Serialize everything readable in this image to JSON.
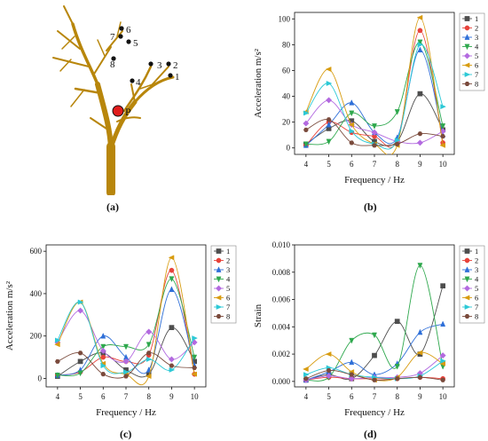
{
  "captions": {
    "a": "(a)",
    "b": "(b)",
    "c": "(c)",
    "d": "(d)"
  },
  "tree": {
    "point_label": "P",
    "point_color": "#e11d1d",
    "branch_color": "#b8860b",
    "labels": [
      "1",
      "2",
      "3",
      "4",
      "5",
      "6",
      "7",
      "8"
    ]
  },
  "colors": {
    "series": [
      "#4d4d4d",
      "#e8433b",
      "#2e6fd8",
      "#2ea84d",
      "#b36ae0",
      "#d89c10",
      "#2cc9d6",
      "#7a4a3c"
    ]
  },
  "chart_data": [
    {
      "id": "b",
      "type": "line",
      "xlabel": "Frequency / Hz",
      "ylabel": "Acceleration m/s²",
      "x": [
        4,
        5,
        6,
        7,
        8,
        9,
        10
      ],
      "xlim": [
        3.5,
        10.5
      ],
      "ylim": [
        -5,
        105
      ],
      "yticks": [
        0,
        20,
        40,
        60,
        80,
        100
      ],
      "yticklabels": [
        "0",
        "20",
        "40",
        "60",
        "80",
        "100"
      ],
      "legend": "right",
      "series": [
        {
          "name": "1",
          "marker": "square",
          "values": [
            3,
            15,
            21,
            5,
            5,
            42,
            14
          ]
        },
        {
          "name": "2",
          "marker": "circle",
          "values": [
            2,
            20,
            12,
            9,
            6,
            91,
            4
          ]
        },
        {
          "name": "3",
          "marker": "triangle-up",
          "values": [
            2,
            18,
            35,
            12,
            8,
            76,
            10
          ]
        },
        {
          "name": "4",
          "marker": "triangle-down",
          "values": [
            3,
            5,
            27,
            17,
            28,
            82,
            17
          ]
        },
        {
          "name": "5",
          "marker": "diamond",
          "values": [
            19,
            37,
            18,
            12,
            5,
            4,
            13
          ]
        },
        {
          "name": "6",
          "marker": "triangle-left",
          "values": [
            28,
            61,
            18,
            3,
            2,
            101,
            2
          ]
        },
        {
          "name": "7",
          "marker": "triangle-right",
          "values": [
            27,
            50,
            13,
            3,
            6,
            80,
            32
          ]
        },
        {
          "name": "8",
          "marker": "hexagon",
          "values": [
            14,
            22,
            4,
            2,
            3,
            11,
            9
          ]
        }
      ]
    },
    {
      "id": "c",
      "type": "line",
      "xlabel": "Frequency / Hz",
      "ylabel": "Acceleration m/s²",
      "x": [
        4,
        5,
        6,
        7,
        8,
        9,
        10
      ],
      "xlim": [
        3.5,
        10.5
      ],
      "ylim": [
        -40,
        630
      ],
      "yticks": [
        0,
        200,
        400,
        600
      ],
      "yticklabels": [
        "0",
        "200",
        "400",
        "600"
      ],
      "legend": "right",
      "series": [
        {
          "name": "1",
          "marker": "square",
          "values": [
            10,
            80,
            120,
            40,
            20,
            240,
            80
          ]
        },
        {
          "name": "2",
          "marker": "circle",
          "values": [
            15,
            30,
            100,
            80,
            110,
            510,
            20
          ]
        },
        {
          "name": "3",
          "marker": "triangle-up",
          "values": [
            15,
            40,
            200,
            100,
            40,
            420,
            60
          ]
        },
        {
          "name": "4",
          "marker": "triangle-down",
          "values": [
            15,
            25,
            150,
            150,
            160,
            470,
            100
          ]
        },
        {
          "name": "5",
          "marker": "diamond",
          "values": [
            170,
            320,
            130,
            80,
            220,
            90,
            170
          ]
        },
        {
          "name": "6",
          "marker": "triangle-left",
          "values": [
            160,
            360,
            70,
            20,
            10,
            570,
            20
          ]
        },
        {
          "name": "7",
          "marker": "triangle-right",
          "values": [
            180,
            360,
            60,
            30,
            90,
            40,
            190
          ]
        },
        {
          "name": "8",
          "marker": "hexagon",
          "values": [
            80,
            120,
            20,
            10,
            120,
            60,
            50
          ]
        }
      ]
    },
    {
      "id": "d",
      "type": "line",
      "xlabel": "Frequency / Hz",
      "ylabel": "Strain",
      "x": [
        4,
        5,
        6,
        7,
        8,
        9,
        10
      ],
      "xlim": [
        3.5,
        10.5
      ],
      "ylim": [
        -0.0004,
        0.01
      ],
      "yticks": [
        0,
        0.002,
        0.004,
        0.006,
        0.008,
        0.01
      ],
      "yticklabels": [
        "0.000",
        "0.002",
        "0.004",
        "0.006",
        "0.008",
        "0.010"
      ],
      "legend": "right",
      "series": [
        {
          "name": "1",
          "marker": "square",
          "values": [
            0.0001,
            0.0005,
            0.0002,
            0.0019,
            0.0044,
            0.002,
            0.007
          ]
        },
        {
          "name": "2",
          "marker": "circle",
          "values": [
            0.0001,
            0.0003,
            0.0002,
            0.0002,
            0.0002,
            0.0003,
            0.0002
          ]
        },
        {
          "name": "3",
          "marker": "triangle-up",
          "values": [
            0.0001,
            0.0007,
            0.0014,
            0.0005,
            0.0013,
            0.0036,
            0.0042
          ]
        },
        {
          "name": "4",
          "marker": "triangle-down",
          "values": [
            0.0001,
            0.0003,
            0.003,
            0.0034,
            0.0011,
            0.0085,
            0.0011
          ]
        },
        {
          "name": "5",
          "marker": "diamond",
          "values": [
            0.0001,
            0.0004,
            0.0002,
            0.0003,
            0.0003,
            0.0006,
            0.0019
          ]
        },
        {
          "name": "6",
          "marker": "triangle-left",
          "values": [
            0.0009,
            0.002,
            0.0007,
            0.0001,
            0.0003,
            0.0021,
            0.0013
          ]
        },
        {
          "name": "7",
          "marker": "triangle-right",
          "values": [
            0.0005,
            0.001,
            0.0005,
            0.0003,
            0.0002,
            0.0004,
            0.0015
          ]
        },
        {
          "name": "8",
          "marker": "hexagon",
          "values": [
            0.0002,
            0.0008,
            0.0005,
            0.0001,
            0.0002,
            0.0003,
            0.0001
          ]
        }
      ]
    }
  ]
}
